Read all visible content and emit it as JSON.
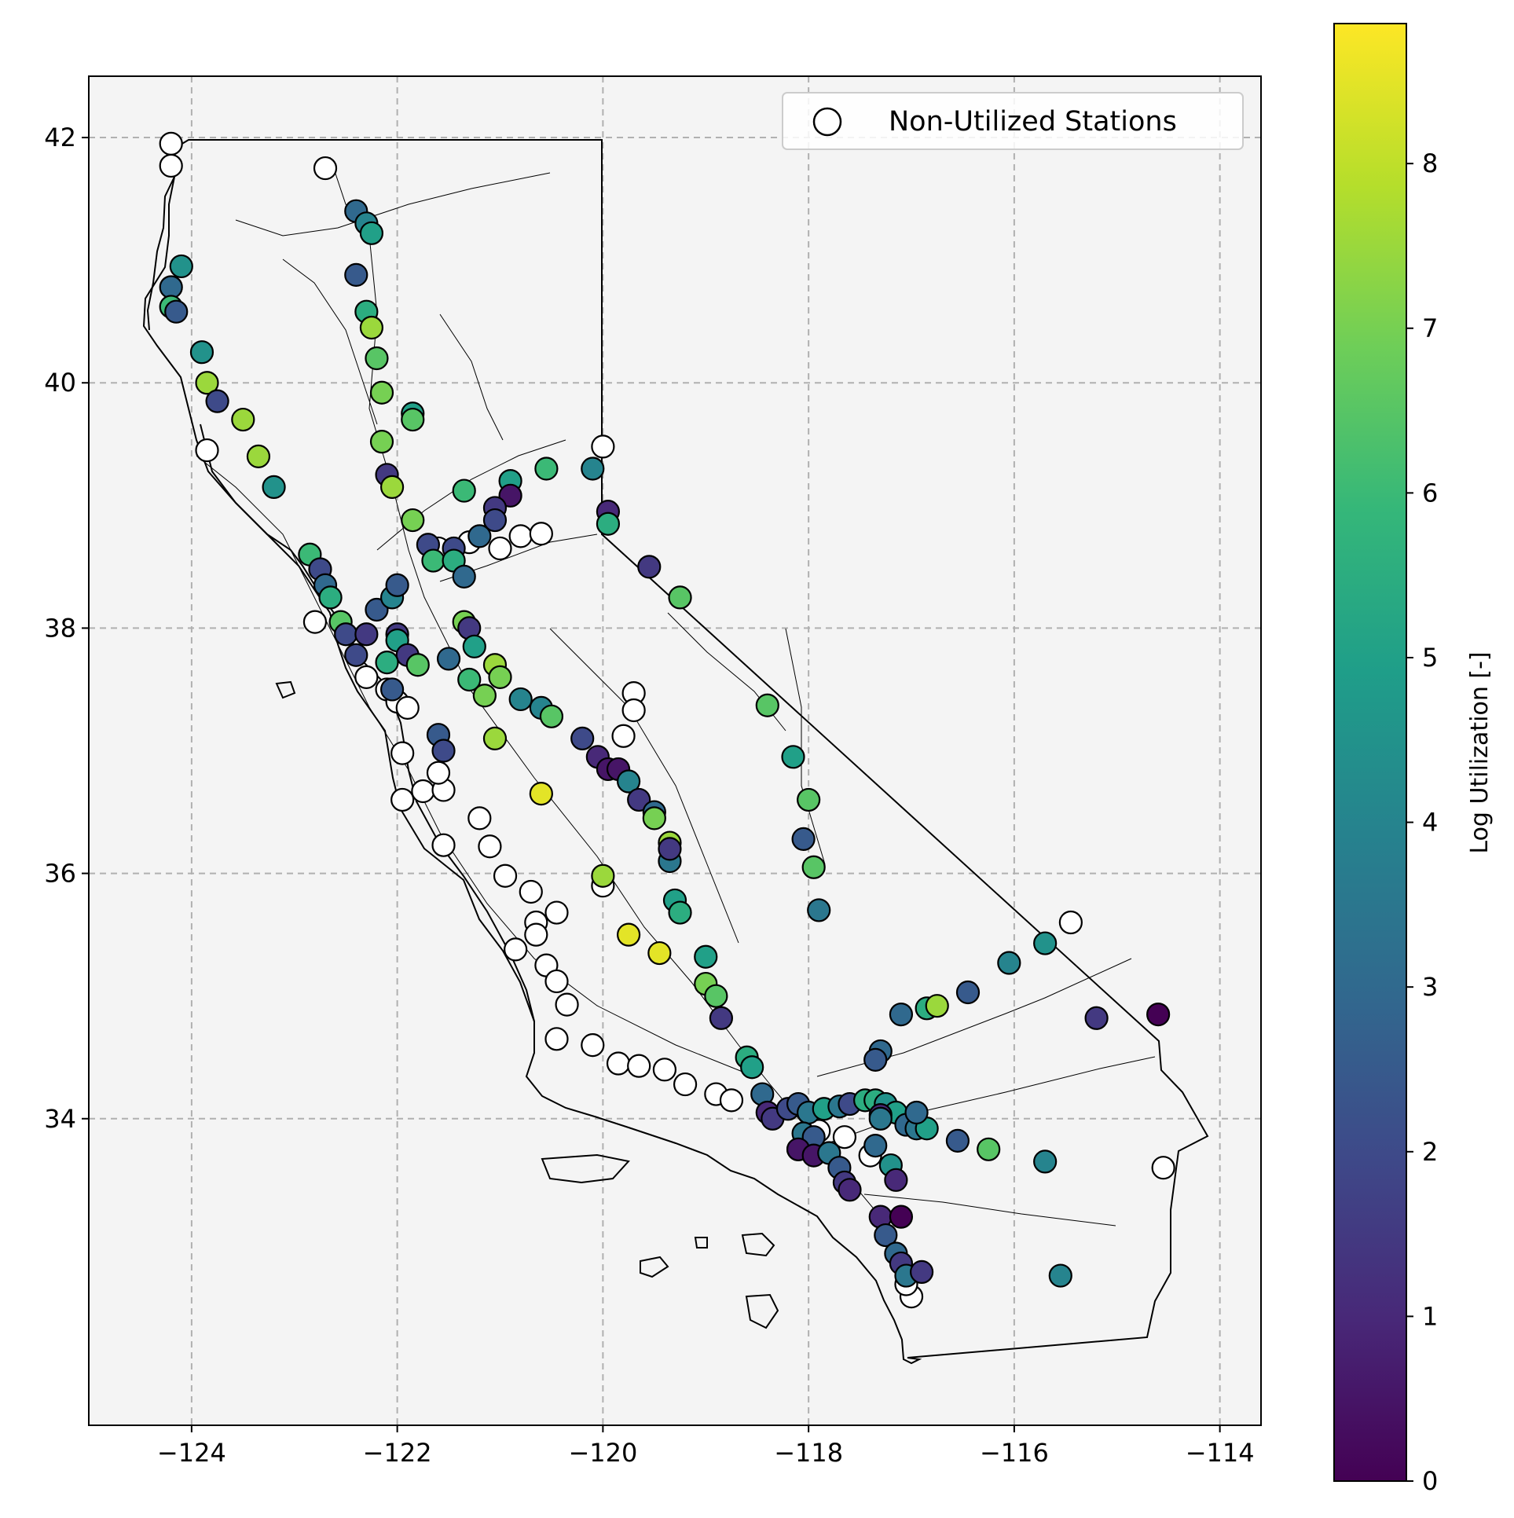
{
  "chart_data": {
    "type": "scatter",
    "title": "",
    "xlabel": "",
    "ylabel": "",
    "xlim": [
      -125.0,
      -113.6
    ],
    "ylim": [
      31.5,
      42.5
    ],
    "xticks": [
      -124,
      -122,
      -120,
      -118,
      -116,
      -114
    ],
    "yticks": [
      34,
      36,
      38,
      40,
      42
    ],
    "xtick_labels": [
      "−124",
      "−122",
      "−120",
      "−118",
      "−116",
      "−114"
    ],
    "ytick_labels": [
      "34",
      "36",
      "38",
      "40",
      "42"
    ],
    "grid": true,
    "legend": {
      "placement": "top-right",
      "entries": [
        "Non-Utilized Stations"
      ]
    },
    "colorbar": {
      "label": "Log Utilization [-]",
      "range": [
        0,
        8.85
      ],
      "ticks": [
        0,
        1,
        2,
        3,
        4,
        5,
        6,
        7,
        8
      ],
      "colormap": "viridis"
    },
    "colors": {
      "axes_background": "#f4f4f4",
      "grid": "#b0b0b0",
      "unutilized_fill": "#ffffff",
      "marker_edge": "#000000",
      "basemap": "#000000"
    },
    "series": [
      {
        "name": "Non-Utilized Stations",
        "points": [
          [
            -124.2,
            41.95
          ],
          [
            -124.2,
            41.77
          ],
          [
            -122.7,
            41.75
          ],
          [
            -123.85,
            39.45
          ],
          [
            -120.0,
            39.48
          ],
          [
            -121.6,
            38.65
          ],
          [
            -121.3,
            38.7
          ],
          [
            -121.0,
            38.65
          ],
          [
            -120.8,
            38.75
          ],
          [
            -120.6,
            38.77
          ],
          [
            -122.8,
            38.05
          ],
          [
            -122.3,
            37.6
          ],
          [
            -122.1,
            37.5
          ],
          [
            -122.0,
            37.4
          ],
          [
            -121.9,
            37.35
          ],
          [
            -121.95,
            36.98
          ],
          [
            -121.95,
            36.6
          ],
          [
            -121.75,
            36.67
          ],
          [
            -121.55,
            36.68
          ],
          [
            -121.6,
            36.82
          ],
          [
            -121.55,
            36.23
          ],
          [
            -121.2,
            36.45
          ],
          [
            -121.1,
            36.22
          ],
          [
            -120.95,
            35.98
          ],
          [
            -120.7,
            35.85
          ],
          [
            -120.65,
            35.6
          ],
          [
            -120.65,
            35.5
          ],
          [
            -120.45,
            35.68
          ],
          [
            -120.55,
            35.25
          ],
          [
            -120.45,
            35.12
          ],
          [
            -120.85,
            35.38
          ],
          [
            -120.35,
            34.93
          ],
          [
            -120.45,
            34.65
          ],
          [
            -120.1,
            34.6
          ],
          [
            -119.85,
            34.45
          ],
          [
            -119.65,
            34.43
          ],
          [
            -119.4,
            34.4
          ],
          [
            -119.2,
            34.28
          ],
          [
            -118.9,
            34.2
          ],
          [
            -118.75,
            34.15
          ],
          [
            -119.7,
            37.47
          ],
          [
            -119.7,
            37.33
          ],
          [
            -119.8,
            37.12
          ],
          [
            -120.0,
            35.9
          ],
          [
            -117.9,
            33.9
          ],
          [
            -117.65,
            33.85
          ],
          [
            -117.4,
            33.7
          ],
          [
            -115.45,
            35.6
          ],
          [
            -114.55,
            33.6
          ],
          [
            -117.0,
            32.55
          ],
          [
            -117.05,
            32.65
          ],
          [
            -118.1,
            33.75
          ]
        ]
      },
      {
        "name": "Utilized Stations",
        "points": [
          [
            -122.4,
            41.4,
            3.0
          ],
          [
            -122.3,
            41.3,
            4.0
          ],
          [
            -122.25,
            41.22,
            5.0
          ],
          [
            -124.1,
            40.95,
            4.5
          ],
          [
            -124.2,
            40.78,
            3.0
          ],
          [
            -124.2,
            40.62,
            6.0
          ],
          [
            -124.15,
            40.58,
            2.5
          ],
          [
            -122.4,
            40.88,
            2.5
          ],
          [
            -122.3,
            40.58,
            5.5
          ],
          [
            -122.25,
            40.45,
            7.5
          ],
          [
            -122.2,
            40.2,
            6.5
          ],
          [
            -122.15,
            39.92,
            7.0
          ],
          [
            -123.9,
            40.25,
            4.5
          ],
          [
            -123.85,
            40.0,
            7.5
          ],
          [
            -123.75,
            39.85,
            2.0
          ],
          [
            -123.5,
            39.7,
            7.5
          ],
          [
            -123.35,
            39.4,
            7.5
          ],
          [
            -123.2,
            39.15,
            4.5
          ],
          [
            -122.15,
            39.52,
            7.0
          ],
          [
            -122.1,
            39.25,
            1.5
          ],
          [
            -122.05,
            39.15,
            7.5
          ],
          [
            -121.85,
            39.75,
            5.0
          ],
          [
            -121.85,
            39.7,
            6.5
          ],
          [
            -121.85,
            38.88,
            7.0
          ],
          [
            -121.35,
            39.12,
            6.0
          ],
          [
            -120.9,
            39.2,
            5.0
          ],
          [
            -120.9,
            39.08,
            0.5
          ],
          [
            -121.05,
            38.98,
            1.5
          ],
          [
            -120.55,
            39.3,
            6.0
          ],
          [
            -120.1,
            39.3,
            4.0
          ],
          [
            -119.95,
            38.95,
            1.0
          ],
          [
            -119.95,
            38.85,
            5.5
          ],
          [
            -121.2,
            38.75,
            3.0
          ],
          [
            -121.05,
            38.88,
            2.0
          ],
          [
            -121.7,
            38.68,
            2.0
          ],
          [
            -121.45,
            38.65,
            2.0
          ],
          [
            -121.65,
            38.55,
            6.0
          ],
          [
            -121.45,
            38.55,
            5.5
          ],
          [
            -121.35,
            38.42,
            3.0
          ],
          [
            -122.85,
            38.6,
            6.0
          ],
          [
            -122.75,
            38.48,
            2.0
          ],
          [
            -122.7,
            38.35,
            3.0
          ],
          [
            -122.65,
            38.25,
            5.5
          ],
          [
            -122.55,
            38.05,
            6.5
          ],
          [
            -122.5,
            37.95,
            2.0
          ],
          [
            -122.4,
            37.78,
            2.0
          ],
          [
            -122.3,
            37.95,
            1.5
          ],
          [
            -122.2,
            38.15,
            2.5
          ],
          [
            -122.05,
            38.25,
            4.0
          ],
          [
            -122.0,
            38.35,
            2.5
          ],
          [
            -122.0,
            37.95,
            1.5
          ],
          [
            -122.0,
            37.9,
            5.0
          ],
          [
            -121.9,
            37.78,
            1.5
          ],
          [
            -121.8,
            37.7,
            6.5
          ],
          [
            -122.1,
            37.72,
            5.5
          ],
          [
            -122.05,
            37.5,
            2.5
          ],
          [
            -121.35,
            38.05,
            7.0
          ],
          [
            -121.3,
            38.0,
            1.5
          ],
          [
            -121.25,
            37.85,
            5.0
          ],
          [
            -121.5,
            37.75,
            3.0
          ],
          [
            -121.3,
            37.58,
            6.0
          ],
          [
            -121.15,
            37.45,
            7.0
          ],
          [
            -121.05,
            37.7,
            7.5
          ],
          [
            -121.0,
            37.6,
            7.0
          ],
          [
            -121.05,
            37.1,
            7.5
          ],
          [
            -120.6,
            36.65,
            8.5
          ],
          [
            -120.8,
            37.42,
            4.0
          ],
          [
            -120.6,
            37.35,
            4.0
          ],
          [
            -120.5,
            37.28,
            6.5
          ],
          [
            -121.6,
            37.13,
            2.5
          ],
          [
            -121.55,
            37.0,
            2.0
          ],
          [
            -120.2,
            37.1,
            2.0
          ],
          [
            -120.05,
            36.95,
            1.0
          ],
          [
            -119.95,
            36.85,
            0.5
          ],
          [
            -119.85,
            36.85,
            0.5
          ],
          [
            -119.75,
            36.75,
            4.0
          ],
          [
            -119.65,
            36.6,
            1.5
          ],
          [
            -119.5,
            36.5,
            3.0
          ],
          [
            -119.5,
            36.45,
            7.0
          ],
          [
            -119.35,
            36.25,
            7.5
          ],
          [
            -119.35,
            36.1,
            3.5
          ],
          [
            -119.35,
            36.2,
            1.5
          ],
          [
            -119.3,
            35.78,
            5.0
          ],
          [
            -119.25,
            35.68,
            5.5
          ],
          [
            -119.0,
            35.32,
            5.0
          ],
          [
            -119.0,
            35.1,
            7.0
          ],
          [
            -118.9,
            35.0,
            6.5
          ],
          [
            -118.85,
            34.82,
            1.5
          ],
          [
            -119.75,
            35.5,
            8.5
          ],
          [
            -119.45,
            35.35,
            8.5
          ],
          [
            -120.0,
            35.98,
            7.5
          ],
          [
            -119.55,
            38.5,
            1.5
          ],
          [
            -119.25,
            38.25,
            6.5
          ],
          [
            -118.4,
            37.37,
            6.5
          ],
          [
            -118.15,
            36.95,
            5.0
          ],
          [
            -118.0,
            36.6,
            6.5
          ],
          [
            -118.05,
            36.28,
            2.5
          ],
          [
            -117.95,
            36.05,
            6.5
          ],
          [
            -117.9,
            35.7,
            3.5
          ],
          [
            -116.05,
            35.27,
            4.0
          ],
          [
            -115.7,
            35.43,
            4.5
          ],
          [
            -116.45,
            35.03,
            2.5
          ],
          [
            -116.85,
            34.9,
            5.5
          ],
          [
            -116.75,
            34.92,
            7.5
          ],
          [
            -117.1,
            34.85,
            3.0
          ],
          [
            -115.2,
            34.82,
            1.5
          ],
          [
            -114.6,
            34.85,
            0.0
          ],
          [
            -117.3,
            34.55,
            3.0
          ],
          [
            -117.35,
            34.48,
            2.5
          ],
          [
            -118.6,
            34.5,
            5.5
          ],
          [
            -118.55,
            34.42,
            5.0
          ],
          [
            -118.45,
            34.2,
            3.0
          ],
          [
            -118.4,
            34.05,
            1.0
          ],
          [
            -118.35,
            34.0,
            1.5
          ],
          [
            -118.2,
            34.08,
            2.0
          ],
          [
            -118.1,
            34.12,
            2.5
          ],
          [
            -118.0,
            34.05,
            3.5
          ],
          [
            -117.85,
            34.08,
            5.0
          ],
          [
            -117.7,
            34.1,
            3.5
          ],
          [
            -117.6,
            34.12,
            2.0
          ],
          [
            -117.45,
            34.15,
            5.5
          ],
          [
            -117.35,
            34.15,
            5.5
          ],
          [
            -117.25,
            34.12,
            4.5
          ],
          [
            -117.15,
            34.05,
            5.0
          ],
          [
            -117.3,
            34.03,
            1.0
          ],
          [
            -117.05,
            33.95,
            3.0
          ],
          [
            -116.95,
            33.92,
            3.5
          ],
          [
            -116.85,
            33.92,
            5.0
          ],
          [
            -116.55,
            33.82,
            2.5
          ],
          [
            -116.25,
            33.75,
            6.5
          ],
          [
            -115.7,
            33.65,
            4.0
          ],
          [
            -118.05,
            33.88,
            3.5
          ],
          [
            -117.95,
            33.85,
            2.5
          ],
          [
            -118.1,
            33.75,
            0.5
          ],
          [
            -117.95,
            33.7,
            0.5
          ],
          [
            -117.8,
            33.72,
            3.5
          ],
          [
            -117.7,
            33.6,
            2.5
          ],
          [
            -117.65,
            33.48,
            1.5
          ],
          [
            -117.6,
            33.42,
            1.0
          ],
          [
            -117.35,
            33.78,
            3.0
          ],
          [
            -117.2,
            33.62,
            4.5
          ],
          [
            -117.15,
            33.5,
            1.0
          ],
          [
            -117.3,
            33.2,
            1.0
          ],
          [
            -117.25,
            33.05,
            2.5
          ],
          [
            -117.15,
            32.9,
            3.0
          ],
          [
            -117.1,
            32.82,
            1.5
          ],
          [
            -117.05,
            32.72,
            3.5
          ],
          [
            -116.9,
            32.75,
            1.5
          ],
          [
            -117.1,
            33.2,
            0.0
          ],
          [
            -115.55,
            32.72,
            4.0
          ],
          [
            -117.3,
            34.0,
            3.5
          ],
          [
            -116.95,
            34.05,
            3.0
          ]
        ]
      }
    ]
  }
}
